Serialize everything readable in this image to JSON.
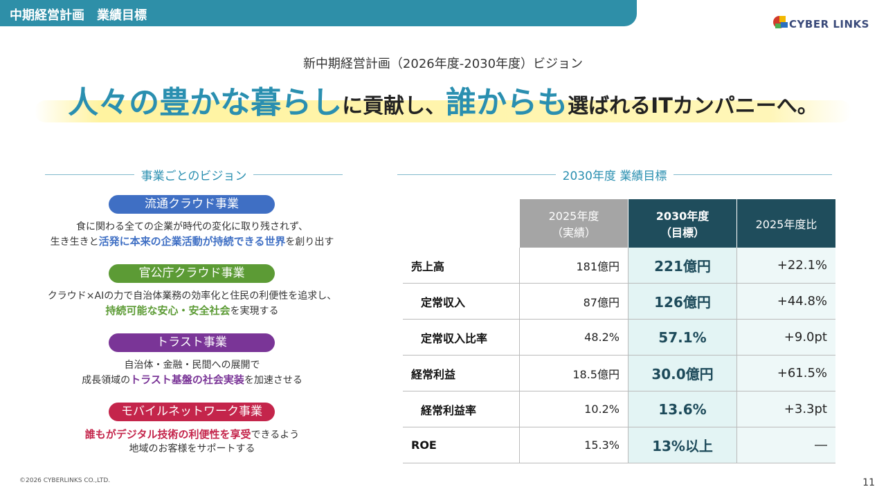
{
  "header": {
    "title": "中期経営計画　業績目標",
    "logo": "CYBER LINKS"
  },
  "vision": {
    "subtitle": "新中期経営計画（2026年度-2030年度）ビジョン",
    "headline": [
      {
        "text": "人々の豊かな暮らし",
        "highlight": true
      },
      {
        "text": "に貢献し、",
        "highlight": false
      },
      {
        "text": "誰からも",
        "highlight": true
      },
      {
        "text": "選ばれるITカンパニーへ。",
        "highlight": false
      }
    ]
  },
  "business": {
    "title": "事業ごとのビジョン",
    "items": [
      {
        "name": "流通クラウド事業",
        "color": "#3f6fc4",
        "lines": [
          [
            {
              "text": "食に関わる全ての企業が時代の変化に取り残されず、",
              "highlight": false
            }
          ],
          [
            {
              "text": "生き生きと",
              "highlight": false
            },
            {
              "text": "活発に本来の企業活動が持続できる世界",
              "highlight": true
            },
            {
              "text": "を創り出す",
              "highlight": false
            }
          ]
        ]
      },
      {
        "name": "官公庁クラウド事業",
        "color": "#5c9b35",
        "lines": [
          [
            {
              "text": "クラウド×AIの力で自治体業務の効率化と住民の利便性を追求し、",
              "highlight": false
            }
          ],
          [
            {
              "text": "持続可能な安心・安全社会",
              "highlight": true
            },
            {
              "text": "を実現する",
              "highlight": false
            }
          ]
        ]
      },
      {
        "name": "トラスト事業",
        "color": "#7a3597",
        "lines": [
          [
            {
              "text": "自治体・金融・民間への展開で",
              "highlight": false
            }
          ],
          [
            {
              "text": "成長領域の",
              "highlight": false
            },
            {
              "text": "トラスト基盤の社会実装",
              "highlight": true
            },
            {
              "text": "を加速させる",
              "highlight": false
            }
          ]
        ]
      },
      {
        "name": "モバイルネットワーク事業",
        "color": "#c4254b",
        "lines": [
          [
            {
              "text": "誰もがデジタル技術の利便性を享受",
              "highlight": true
            },
            {
              "text": "できるよう",
              "highlight": false
            }
          ],
          [
            {
              "text": "地域のお客様をサポートする",
              "highlight": false
            }
          ]
        ]
      }
    ]
  },
  "table": {
    "title": "2030年度  業績目標",
    "headers": [
      "2025年度\n（実績）",
      "2030年度\n（目標）",
      "2025年度比"
    ],
    "rows": [
      {
        "label": "売上高",
        "sub": false,
        "cells": [
          "181億円",
          "221億円",
          "+22.1%"
        ]
      },
      {
        "label": "定常収入",
        "sub": true,
        "cells": [
          "87億円",
          "126億円",
          "+44.8%"
        ]
      },
      {
        "label": "定常収入比率",
        "sub": true,
        "cells": [
          "48.2%",
          "57.1%",
          "+9.0pt"
        ]
      },
      {
        "label": "経常利益",
        "sub": false,
        "cells": [
          "18.5億円",
          "30.0億円",
          "+61.5%"
        ]
      },
      {
        "label": "経常利益率",
        "sub": true,
        "cells": [
          "10.2%",
          "13.6%",
          "+3.3pt"
        ]
      },
      {
        "label": "ROE",
        "sub": false,
        "cells": [
          "15.3%",
          "13%以上",
          "―"
        ]
      }
    ]
  },
  "footer": {
    "copyright": "©2026 CYBERLINKS CO.,LTD.",
    "page": "11"
  }
}
